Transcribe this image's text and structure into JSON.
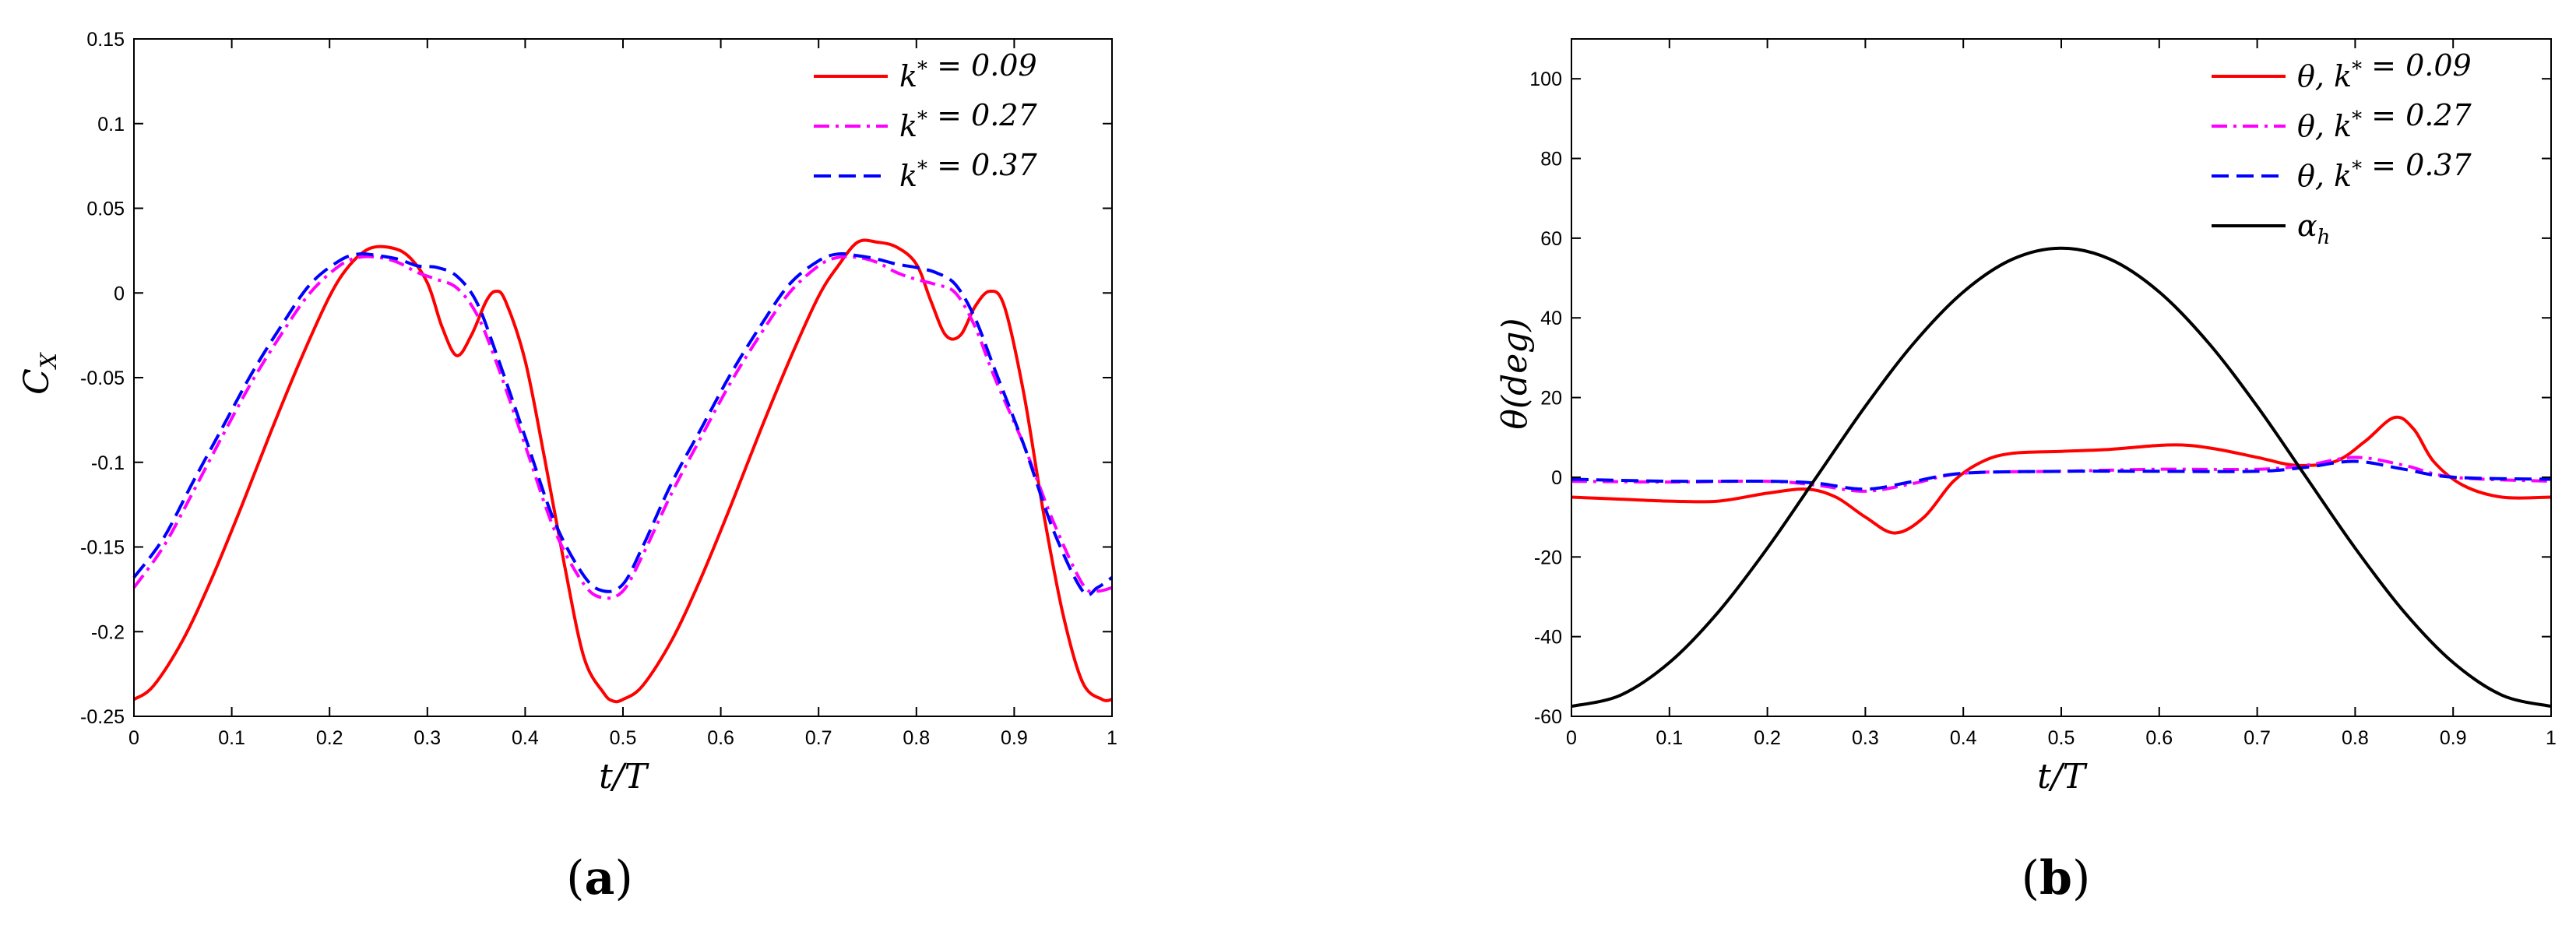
{
  "chart_data": [
    {
      "type": "line",
      "caption_letter": "a",
      "xlabel": "t/T",
      "ylabel": "C_X",
      "xlim": [
        0,
        1
      ],
      "ylim": [
        -0.25,
        0.15
      ],
      "xticks": [
        0,
        0.1,
        0.2,
        0.3,
        0.4,
        0.5,
        0.6,
        0.7,
        0.8,
        0.9,
        1
      ],
      "xtick_labels": [
        "0",
        "0.1",
        "0.2",
        "0.3",
        "0.4",
        "0.5",
        "0.6",
        "0.7",
        "0.8",
        "0.9",
        "1"
      ],
      "yticks": [
        -0.25,
        -0.2,
        -0.15,
        -0.1,
        -0.05,
        0,
        0.05,
        0.1,
        0.15
      ],
      "ytick_labels": [
        "-0.25",
        "-0.2",
        "-0.15",
        "-0.1",
        "-0.05",
        "0",
        "0.05",
        "0.1",
        "0.15"
      ],
      "legend_location": "top-right",
      "series": [
        {
          "name": "k* = 0.09",
          "color": "#ff0000",
          "dash": "solid",
          "x": [
            0,
            0.02,
            0.05,
            0.08,
            0.11,
            0.14,
            0.17,
            0.2,
            0.22,
            0.24,
            0.26,
            0.28,
            0.3,
            0.315,
            0.33,
            0.345,
            0.36,
            0.37,
            0.38,
            0.4,
            0.42,
            0.44,
            0.46,
            0.48,
            0.49,
            0.5,
            0.52,
            0.55,
            0.58,
            0.61,
            0.64,
            0.67,
            0.7,
            0.72,
            0.74,
            0.76,
            0.78,
            0.8,
            0.815,
            0.83,
            0.845,
            0.86,
            0.875,
            0.89,
            0.91,
            0.93,
            0.95,
            0.97,
            0.99,
            1
          ],
          "y": [
            -0.24,
            -0.232,
            -0.205,
            -0.168,
            -0.126,
            -0.082,
            -0.04,
            -0.002,
            0.016,
            0.026,
            0.027,
            0.022,
            0.006,
            -0.02,
            -0.037,
            -0.025,
            -0.005,
            0.001,
            -0.005,
            -0.04,
            -0.098,
            -0.16,
            -0.215,
            -0.236,
            -0.241,
            -0.24,
            -0.232,
            -0.205,
            -0.168,
            -0.126,
            -0.082,
            -0.04,
            -0.002,
            0.016,
            0.03,
            0.03,
            0.027,
            0.017,
            -0.005,
            -0.025,
            -0.025,
            -0.008,
            0.001,
            -0.008,
            -0.06,
            -0.13,
            -0.19,
            -0.23,
            -0.24,
            -0.24
          ]
        },
        {
          "name": "k* = 0.27",
          "color": "#ff00ff",
          "dash": "dashdot",
          "x": [
            0,
            0.03,
            0.06,
            0.09,
            0.12,
            0.15,
            0.18,
            0.21,
            0.23,
            0.25,
            0.27,
            0.29,
            0.31,
            0.33,
            0.35,
            0.37,
            0.4,
            0.43,
            0.46,
            0.48,
            0.5,
            0.52,
            0.55,
            0.58,
            0.61,
            0.64,
            0.67,
            0.7,
            0.72,
            0.74,
            0.76,
            0.78,
            0.8,
            0.82,
            0.84,
            0.86,
            0.88,
            0.91,
            0.94,
            0.97,
            0.985,
            1
          ],
          "y": [
            -0.174,
            -0.15,
            -0.118,
            -0.085,
            -0.053,
            -0.025,
            0,
            0.016,
            0.021,
            0.021,
            0.018,
            0.012,
            0.008,
            0.003,
            -0.012,
            -0.04,
            -0.09,
            -0.14,
            -0.172,
            -0.18,
            -0.176,
            -0.155,
            -0.118,
            -0.085,
            -0.053,
            -0.025,
            0,
            0.016,
            0.021,
            0.021,
            0.018,
            0.012,
            0.008,
            0.005,
            0,
            -0.02,
            -0.05,
            -0.09,
            -0.135,
            -0.172,
            -0.176,
            -0.174
          ]
        },
        {
          "name": "k* = 0.37",
          "color": "#0000ff",
          "dash": "dashed",
          "x": [
            0,
            0.03,
            0.06,
            0.09,
            0.12,
            0.15,
            0.18,
            0.21,
            0.23,
            0.25,
            0.27,
            0.29,
            0.31,
            0.33,
            0.35,
            0.37,
            0.4,
            0.43,
            0.46,
            0.48,
            0.5,
            0.52,
            0.55,
            0.58,
            0.61,
            0.64,
            0.67,
            0.7,
            0.72,
            0.74,
            0.76,
            0.78,
            0.8,
            0.82,
            0.84,
            0.86,
            0.88,
            0.91,
            0.94,
            0.97,
            0.985,
            1
          ],
          "y": [
            -0.168,
            -0.145,
            -0.112,
            -0.08,
            -0.048,
            -0.02,
            0.005,
            0.019,
            0.023,
            0.022,
            0.02,
            0.016,
            0.015,
            0.01,
            -0.005,
            -0.035,
            -0.085,
            -0.135,
            -0.167,
            -0.176,
            -0.172,
            -0.15,
            -0.112,
            -0.08,
            -0.048,
            -0.02,
            0.005,
            0.019,
            0.023,
            0.022,
            0.02,
            0.017,
            0.015,
            0.012,
            0.005,
            -0.015,
            -0.045,
            -0.09,
            -0.14,
            -0.176,
            -0.174,
            -0.168
          ]
        }
      ]
    },
    {
      "type": "line",
      "caption_letter": "b",
      "xlabel": "t/T",
      "ylabel": "θ(deg)",
      "xlim": [
        0,
        1
      ],
      "ylim": [
        -60,
        110
      ],
      "xticks": [
        0,
        0.1,
        0.2,
        0.3,
        0.4,
        0.5,
        0.6,
        0.7,
        0.8,
        0.9,
        1
      ],
      "xtick_labels": [
        "0",
        "0.1",
        "0.2",
        "0.3",
        "0.4",
        "0.5",
        "0.6",
        "0.7",
        "0.8",
        "0.9",
        "1"
      ],
      "yticks": [
        -60,
        -40,
        -20,
        0,
        20,
        40,
        60,
        80,
        100
      ],
      "ytick_labels": [
        "-60",
        "-40",
        "-20",
        "0",
        "20",
        "40",
        "60",
        "80",
        "100"
      ],
      "legend_location": "top-right",
      "series": [
        {
          "name": "θ, k* = 0.09",
          "color": "#ff0000",
          "dash": "solid",
          "x": [
            0,
            0.05,
            0.1,
            0.15,
            0.2,
            0.24,
            0.27,
            0.3,
            0.33,
            0.36,
            0.39,
            0.42,
            0.45,
            0.5,
            0.55,
            0.6,
            0.63,
            0.66,
            0.7,
            0.74,
            0.78,
            0.81,
            0.84,
            0.86,
            0.88,
            0.91,
            0.95,
            1
          ],
          "y": [
            -5,
            -5.5,
            -6,
            -6,
            -4,
            -3,
            -5,
            -10,
            -14,
            -10,
            -1,
            4,
            6,
            6.5,
            7,
            8,
            8,
            7,
            5,
            3,
            4,
            9,
            15,
            12,
            4,
            -2,
            -5,
            -5
          ]
        },
        {
          "name": "θ, k* = 0.27",
          "color": "#ff00ff",
          "dash": "dashdot",
          "x": [
            0,
            0.1,
            0.2,
            0.25,
            0.3,
            0.35,
            0.4,
            0.5,
            0.6,
            0.7,
            0.75,
            0.8,
            0.85,
            0.9,
            1
          ],
          "y": [
            -1,
            -1.2,
            -1,
            -2,
            -3.5,
            -1.5,
            1,
            1.5,
            2,
            2,
            3,
            5,
            3,
            0,
            -1
          ]
        },
        {
          "name": "θ, k* = 0.37",
          "color": "#0000ff",
          "dash": "dashed",
          "x": [
            0,
            0.1,
            0.2,
            0.25,
            0.3,
            0.35,
            0.4,
            0.5,
            0.6,
            0.7,
            0.75,
            0.8,
            0.85,
            0.9,
            1
          ],
          "y": [
            -0.5,
            -1,
            -1,
            -1.5,
            -3,
            -1,
            1,
            1.5,
            1.5,
            1.5,
            2.5,
            4,
            2,
            0,
            -0.5
          ]
        },
        {
          "name": "α_h",
          "color": "#000000",
          "dash": "solid",
          "formula": "-57.5 * cos(2*pi*t)",
          "x": [
            0,
            0.05,
            0.1,
            0.15,
            0.2,
            0.25,
            0.3,
            0.35,
            0.4,
            0.45,
            0.5,
            0.55,
            0.6,
            0.65,
            0.7,
            0.75,
            0.8,
            0.85,
            0.9,
            0.95,
            1
          ],
          "y": [
            -57.5,
            -54.7,
            -46.5,
            -33.8,
            -17.8,
            0,
            17.8,
            33.8,
            46.5,
            54.7,
            57.5,
            54.7,
            46.5,
            33.8,
            17.8,
            0,
            -17.8,
            -33.8,
            -46.5,
            -54.7,
            -57.5
          ]
        }
      ]
    }
  ]
}
